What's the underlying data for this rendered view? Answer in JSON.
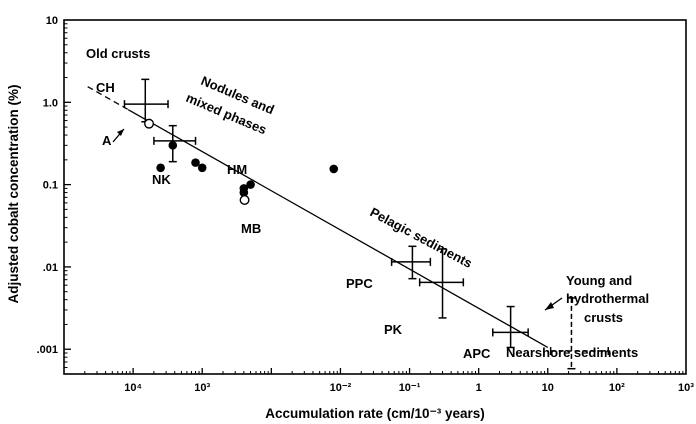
{
  "chart_data": {
    "type": "scatter",
    "title": "",
    "xlabel": "Accumulation rate (cm/10⁻³ years)",
    "ylabel": "Adjusted cobalt concentration (%)",
    "xscale": "log",
    "yscale": "log",
    "xlim": [
      1e-06,
      1000
    ],
    "ylim": [
      0.0005,
      10
    ],
    "grid": false,
    "x_tick_labels": [
      "10⁴",
      "10³",
      "10⁻²",
      "10⁻¹",
      "1",
      "10",
      "10²",
      "10³"
    ],
    "y_tick_labels": [
      ".001",
      ".01",
      "0.1",
      "1.0",
      "10"
    ],
    "regression_line": {
      "x": [
        2.2e-06,
        10
      ],
      "y": [
        1.55,
        0.00105
      ]
    },
    "series": [
      {
        "points": [
          {
            "x": 2.5e-05,
            "y": 0.16
          },
          {
            "x": 8e-05,
            "y": 0.185
          },
          {
            "x": 0.0001,
            "y": 0.16
          },
          {
            "x": 3.75e-05,
            "y": 0.3
          },
          {
            "x": 0.0004,
            "y": 0.08
          },
          {
            "x": 0.0004,
            "y": 0.09
          },
          {
            "x": 0.0005,
            "y": 0.1
          },
          {
            "x": 0.008,
            "y": 0.155
          }
        ]
      },
      {
        "points": [
          {
            "x": 1.7e-05,
            "y": 0.55
          },
          {
            "x": 0.00041,
            "y": 0.065
          }
        ]
      }
    ],
    "error_bars": [
      {
        "label": "CH",
        "x": 1.5e-05,
        "y": 0.95,
        "xlo": 7.5e-06,
        "xhi": 3.2e-05,
        "ylo": 0.58,
        "yhi": 1.9,
        "dashed": false
      },
      {
        "label": "",
        "x": 3.75e-05,
        "y": 0.34,
        "xlo": 2e-05,
        "xhi": 8e-05,
        "ylo": 0.19,
        "yhi": 0.52,
        "dashed": false
      },
      {
        "label": "PPC",
        "x": 0.11,
        "y": 0.0115,
        "xlo": 0.055,
        "xhi": 0.2,
        "ylo": 0.0072,
        "yhi": 0.0178,
        "dashed": false
      },
      {
        "label": "PK",
        "x": 0.3,
        "y": 0.0065,
        "xlo": 0.14,
        "xhi": 0.6,
        "ylo": 0.0024,
        "yhi": 0.0165,
        "dashed": false
      },
      {
        "label": "APC",
        "x": 2.9,
        "y": 0.0016,
        "xlo": 1.6,
        "xhi": 5.2,
        "ylo": 0.00105,
        "yhi": 0.0033,
        "dashed": false
      },
      {
        "label": "",
        "x": 22,
        "y": 0.00095,
        "xlo": 11,
        "xhi": 75,
        "ylo": 0.00058,
        "yhi": 0.0042,
        "dashed": true
      }
    ],
    "annotations": [
      {
        "text": "Old crusts"
      },
      {
        "text": "CH"
      },
      {
        "text": "A"
      },
      {
        "text": "NK"
      },
      {
        "text": "Nodules and"
      },
      {
        "text": "mixed phases"
      },
      {
        "text": "HM"
      },
      {
        "text": "MB"
      },
      {
        "text": "Pelagic sediments"
      },
      {
        "text": "PPC"
      },
      {
        "text": "PK"
      },
      {
        "text": "APC"
      },
      {
        "text": "Young and"
      },
      {
        "text": "hydrothermal"
      },
      {
        "text": "crusts"
      },
      {
        "text": "Nearshore sediments"
      }
    ]
  }
}
